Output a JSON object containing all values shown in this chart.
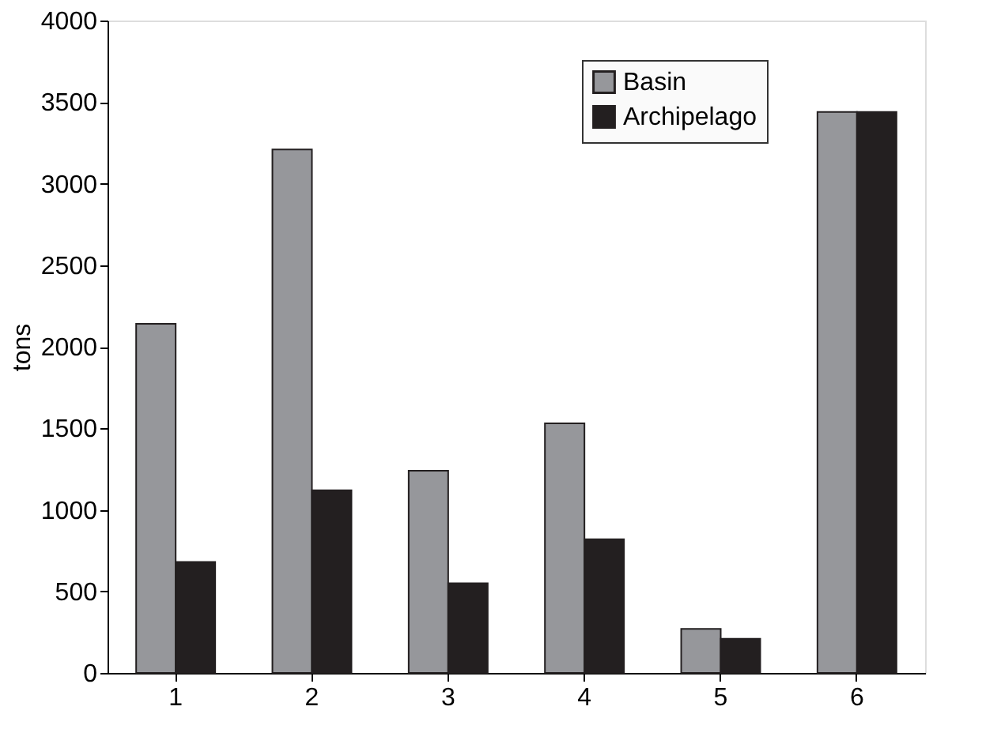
{
  "chart_data": {
    "type": "bar",
    "ylabel": "tons",
    "categories": [
      "1",
      "2",
      "3",
      "4",
      "5",
      "6"
    ],
    "series": [
      {
        "name": "Basin",
        "color": "#96979b",
        "values": [
          2140,
          3210,
          1240,
          1530,
          270,
          3440
        ]
      },
      {
        "name": "Archipelago",
        "color": "#231f20",
        "values": [
          680,
          1120,
          550,
          820,
          210,
          3440
        ]
      }
    ],
    "ylim": [
      0,
      4000
    ],
    "yticks": [
      0,
      500,
      1000,
      1500,
      2000,
      2500,
      3000,
      3500,
      4000
    ],
    "grid": false,
    "legend": "top right"
  }
}
